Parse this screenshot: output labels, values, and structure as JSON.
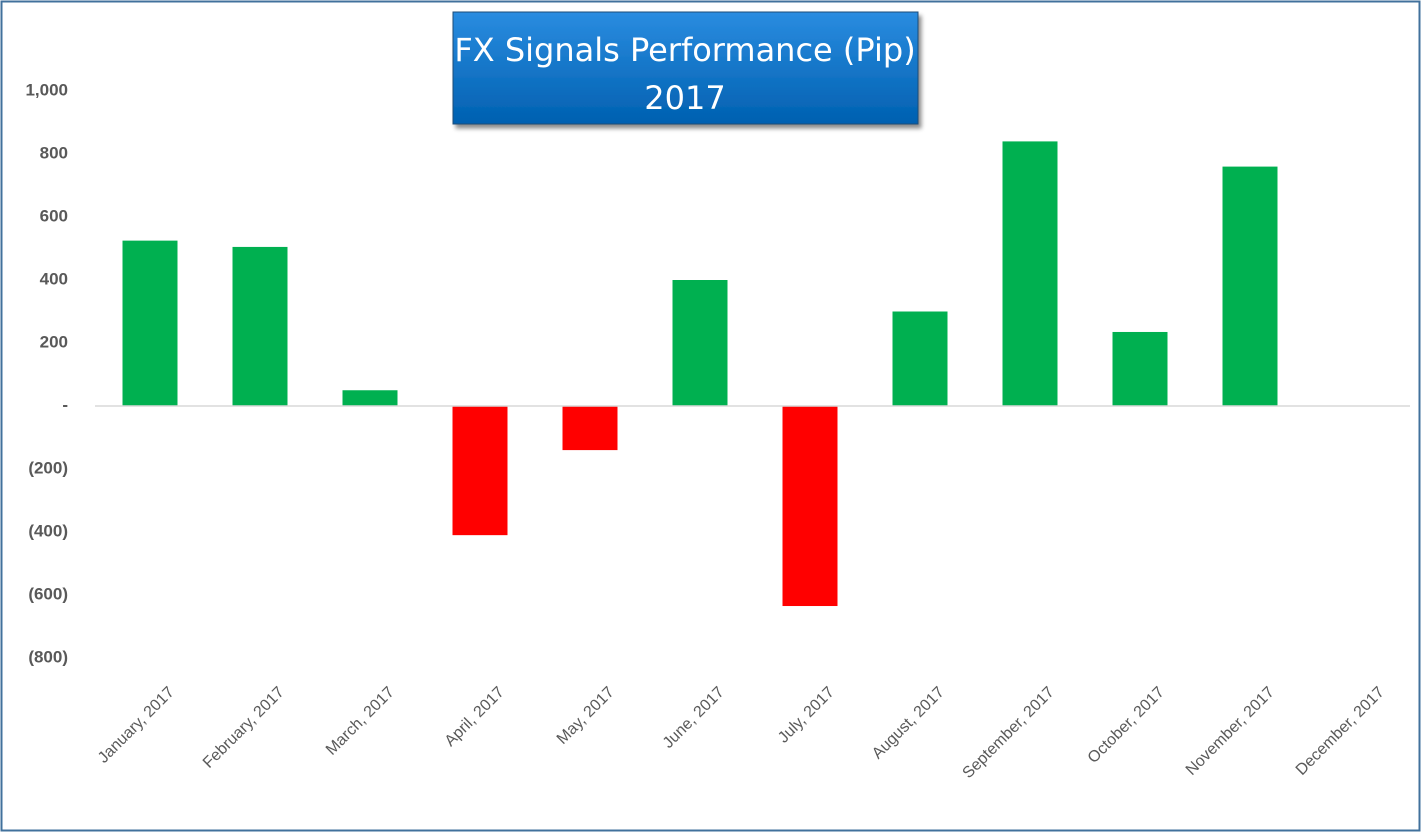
{
  "chart_data": {
    "type": "bar",
    "title": "FX Signals Performance (Pip)",
    "subtitle": "2017",
    "categories": [
      "January, 2017",
      "February, 2017",
      "March, 2017",
      "April, 2017",
      "May, 2017",
      "June, 2017",
      "July, 2017",
      "August, 2017",
      "September, 2017",
      "October, 2017",
      "November, 2017",
      "December, 2017"
    ],
    "values": [
      525,
      505,
      50,
      -410,
      -140,
      400,
      -635,
      300,
      840,
      235,
      760,
      null
    ],
    "colors": [
      "#00b050",
      "#00b050",
      "#00b050",
      "#ff0000",
      "#ff0000",
      "#00b050",
      "#ff0000",
      "#00b050",
      "#00b050",
      "#00b050",
      "#00b050",
      "#00b050"
    ],
    "ylim": [
      -800,
      1000
    ],
    "yticks": [
      {
        "value": 1000,
        "label": "1,000"
      },
      800,
      600,
      400,
      200,
      {
        "value": 0,
        "label": "-"
      },
      {
        "value": -200,
        "label": "(200)"
      },
      {
        "value": -400,
        "label": "(400)"
      },
      {
        "value": -600,
        "label": "(600)"
      },
      {
        "value": -800,
        "label": "(800)"
      }
    ],
    "grid": false
  }
}
